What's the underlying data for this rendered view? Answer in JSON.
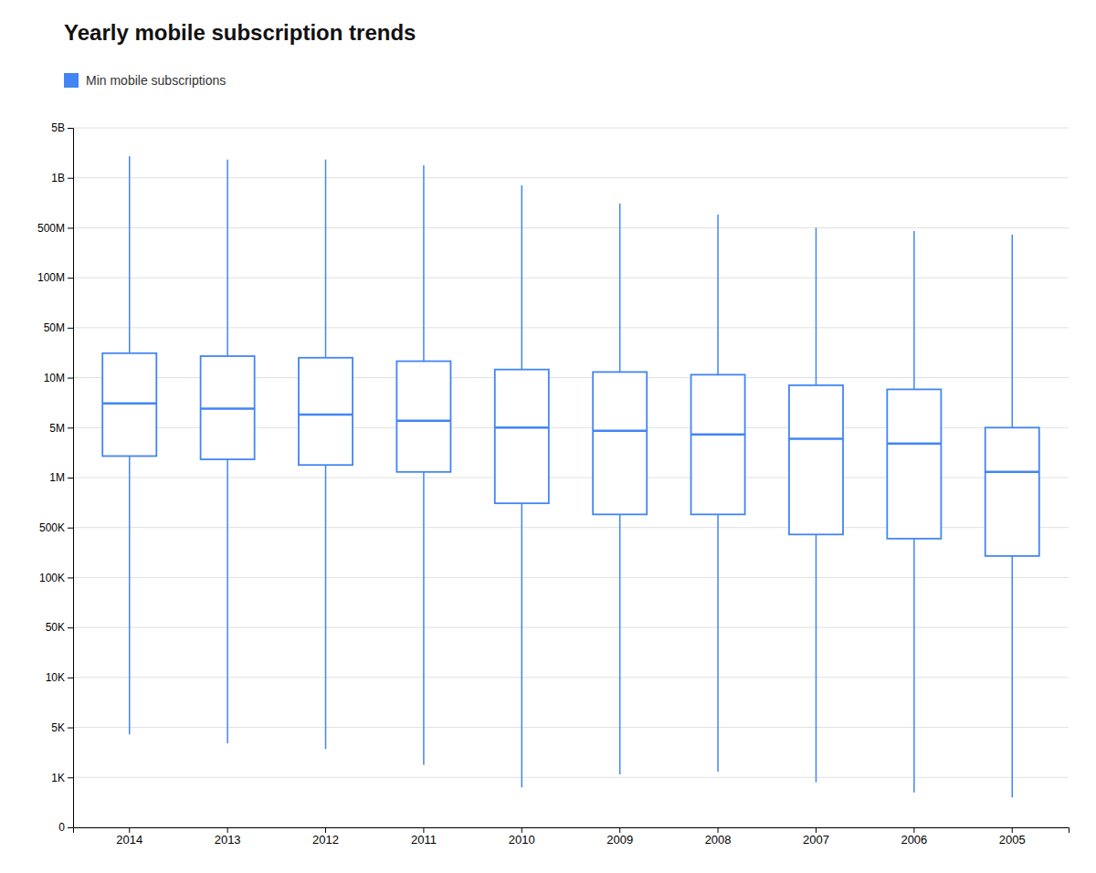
{
  "chart_data": {
    "type": "box",
    "title": "Yearly mobile subscription trends",
    "categories": [
      "2014",
      "2013",
      "2012",
      "2011",
      "2010",
      "2009",
      "2008",
      "2007",
      "2006",
      "2005"
    ],
    "series": [
      {
        "name": "Min mobile subscriptions",
        "color": "#4285F4",
        "whislo": [
          4000,
          3000,
          2500,
          1500,
          800,
          1100,
          1200,
          900,
          700,
          600
        ],
        "q1": [
          2000000,
          1800000,
          1500000,
          1200000,
          700000,
          600000,
          600000,
          400000,
          350000,
          200000
        ],
        "med": [
          7000000,
          6500000,
          6000000,
          5500000,
          5000000,
          4500000,
          4000000,
          3500000,
          3000000,
          1200000
        ],
        "q3": [
          22000000,
          20000000,
          19000000,
          17000000,
          13000000,
          12000000,
          11000000,
          9000000,
          8500000,
          5000000
        ],
        "whishi": [
          2000000000,
          1800000000,
          1800000000,
          1500000000,
          900000000,
          700000000,
          600000000,
          500000000,
          450000000,
          400000000
        ]
      }
    ],
    "ylim": [
      0,
      5000000000
    ],
    "yticks": [
      0,
      {
        "value": 1000,
        "label": "1K"
      },
      {
        "value": 5000,
        "label": "5K"
      },
      {
        "value": 10000,
        "label": "10K"
      },
      {
        "value": 50000,
        "label": "50K"
      },
      {
        "value": 100000,
        "label": "100K"
      },
      {
        "value": 500000,
        "label": "500K"
      },
      {
        "value": 1000000,
        "label": "1M"
      },
      {
        "value": 5000000,
        "label": "5M"
      },
      {
        "value": 10000000,
        "label": "10M"
      },
      {
        "value": 50000000,
        "label": "50M"
      },
      {
        "value": 100000000,
        "label": "100M"
      },
      {
        "value": 500000000,
        "label": "500M"
      },
      {
        "value": 1000000000,
        "label": "1B"
      },
      {
        "value": 5000000000,
        "label": "5B"
      }
    ],
    "log": "y",
    "grid": true,
    "legend": "top-left"
  }
}
